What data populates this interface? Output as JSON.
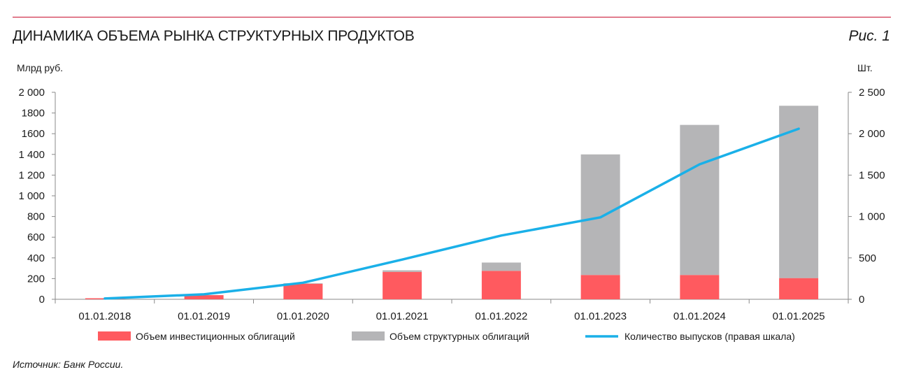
{
  "header": {
    "title": "ДИНАМИКА ОБЪЕМА РЫНКА СТРУКТУРНЫХ ПРОДУКТОВ",
    "figure_label": "Рис. 1"
  },
  "source": "Источник: Банк России.",
  "colors": {
    "investment_bonds": "#ff5a5f",
    "structural_bonds": "#b5b5b7",
    "issues_line": "#1ab0e8",
    "accent_rule": "#c8102e"
  },
  "chart_data": {
    "type": "bar",
    "stacked": true,
    "categories": [
      "01.01.2018",
      "01.01.2019",
      "01.01.2020",
      "01.01.2021",
      "01.01.2022",
      "01.01.2023",
      "01.01.2024",
      "01.01.2025"
    ],
    "series": [
      {
        "name": "Объем инвестиционных облигаций",
        "axis": "left",
        "values": [
          10,
          40,
          150,
          265,
          275,
          235,
          235,
          205
        ]
      },
      {
        "name": "Объем структурных облигаций",
        "axis": "left",
        "values": [
          0,
          0,
          5,
          15,
          80,
          1165,
          1450,
          1665
        ]
      },
      {
        "name": "Количество выпусков (правая шкала)",
        "axis": "right",
        "type": "line",
        "values": [
          10,
          60,
          200,
          480,
          770,
          990,
          1630,
          2060
        ]
      }
    ],
    "ylabel_left": "Млрд руб.",
    "ylabel_right": "Шт.",
    "ylim_left": [
      0,
      2000
    ],
    "ylim_right": [
      0,
      2500
    ],
    "yticks_left": [
      "0",
      "200",
      "400",
      "600",
      "800",
      "1 000",
      "1 200",
      "1 400",
      "1600",
      "1800",
      "2 000"
    ],
    "yticks_right": [
      "0",
      "500",
      "1 000",
      "1 500",
      "2 000",
      "2 500"
    ],
    "legend_position": "bottom",
    "grid": false
  }
}
